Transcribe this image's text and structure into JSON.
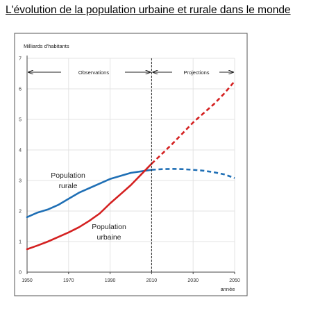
{
  "page_title": "L'évolution de la population urbaine et rurale dans le monde",
  "chart_data": {
    "type": "line",
    "ylabel": "Milliards d'habitants",
    "xlabel": "année",
    "xlim": [
      1950,
      2050
    ],
    "ylim": [
      0,
      7
    ],
    "x_ticks": [
      "1950",
      "1970",
      "1990",
      "2010",
      "2030",
      "2050"
    ],
    "y_ticks": [
      "0",
      "1",
      "2",
      "3",
      "4",
      "5",
      "6",
      "7"
    ],
    "grid": true,
    "divider_year": 2010,
    "annotations": {
      "observations": "Observations",
      "projections": "Projections"
    },
    "series": [
      {
        "name": "Population rurale",
        "label_line1": "Population",
        "label_line2": "rurale",
        "color": "#1f6fb5",
        "observed": [
          [
            1950,
            1.8
          ],
          [
            1955,
            1.95
          ],
          [
            1960,
            2.05
          ],
          [
            1965,
            2.2
          ],
          [
            1970,
            2.4
          ],
          [
            1975,
            2.6
          ],
          [
            1980,
            2.75
          ],
          [
            1985,
            2.9
          ],
          [
            1990,
            3.05
          ],
          [
            1995,
            3.15
          ],
          [
            2000,
            3.25
          ],
          [
            2005,
            3.3
          ],
          [
            2010,
            3.35
          ]
        ],
        "projected": [
          [
            2010,
            3.35
          ],
          [
            2015,
            3.37
          ],
          [
            2020,
            3.38
          ],
          [
            2025,
            3.37
          ],
          [
            2030,
            3.35
          ],
          [
            2035,
            3.32
          ],
          [
            2040,
            3.27
          ],
          [
            2045,
            3.2
          ],
          [
            2050,
            3.08
          ]
        ]
      },
      {
        "name": "Population urbaine",
        "label_line1": "Population",
        "label_line2": "urbaine",
        "color": "#d42020",
        "observed": [
          [
            1950,
            0.75
          ],
          [
            1955,
            0.87
          ],
          [
            1960,
            1.0
          ],
          [
            1965,
            1.15
          ],
          [
            1970,
            1.3
          ],
          [
            1975,
            1.47
          ],
          [
            1980,
            1.68
          ],
          [
            1985,
            1.92
          ],
          [
            1990,
            2.25
          ],
          [
            1995,
            2.55
          ],
          [
            2000,
            2.85
          ],
          [
            2005,
            3.2
          ],
          [
            2010,
            3.55
          ]
        ],
        "projected": [
          [
            2010,
            3.55
          ],
          [
            2015,
            3.87
          ],
          [
            2020,
            4.2
          ],
          [
            2025,
            4.55
          ],
          [
            2030,
            4.9
          ],
          [
            2035,
            5.2
          ],
          [
            2040,
            5.5
          ],
          [
            2045,
            5.85
          ],
          [
            2050,
            6.25
          ]
        ]
      }
    ]
  }
}
